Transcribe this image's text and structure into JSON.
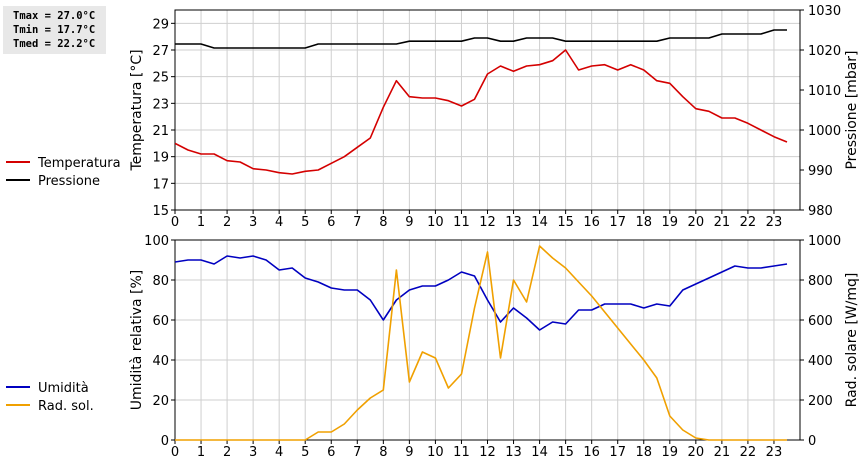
{
  "stats": {
    "tmax": "Tmax = 27.0°C",
    "tmin": "Tmin = 17.7°C",
    "tmed": "Tmed = 22.2°C"
  },
  "chart_data": [
    {
      "type": "line",
      "x": [
        0,
        0.5,
        1,
        1.5,
        2,
        2.5,
        3,
        3.5,
        4,
        4.5,
        5,
        5.5,
        6,
        6.5,
        7,
        7.5,
        8,
        8.5,
        9,
        9.5,
        10,
        10.5,
        11,
        11.5,
        12,
        12.5,
        13,
        13.5,
        14,
        14.5,
        15,
        15.5,
        16,
        16.5,
        17,
        17.5,
        18,
        18.5,
        19,
        19.5,
        20,
        20.5,
        21,
        21.5,
        22,
        22.5,
        23,
        23.5
      ],
      "xlim": [
        0,
        24
      ],
      "xticks": [
        "0",
        "1",
        "2",
        "3",
        "4",
        "5",
        "6",
        "7",
        "8",
        "9",
        "10",
        "11",
        "12",
        "13",
        "14",
        "15",
        "16",
        "17",
        "18",
        "19",
        "20",
        "21",
        "22",
        "23"
      ],
      "ylabel": "Temperatura [°C]",
      "ylim": [
        15,
        30
      ],
      "yticks": [
        "15",
        "17",
        "19",
        "21",
        "23",
        "25",
        "27",
        "29"
      ],
      "y2label": "Pressione [mbar]",
      "y2lim": [
        980,
        1030
      ],
      "y2ticks": [
        "980",
        "990",
        "1000",
        "1010",
        "1020",
        "1030"
      ],
      "grid": true,
      "legend": "left",
      "series": [
        {
          "name": "Temperatura",
          "color": "#d40000",
          "axis": "left",
          "values": [
            20.0,
            19.5,
            19.2,
            19.2,
            18.7,
            18.6,
            18.1,
            18.0,
            17.8,
            17.7,
            17.9,
            18.0,
            18.5,
            19.0,
            19.7,
            20.4,
            22.7,
            24.7,
            23.5,
            23.4,
            23.4,
            23.2,
            22.8,
            23.3,
            25.2,
            25.8,
            25.4,
            25.8,
            25.9,
            26.2,
            27.0,
            25.5,
            25.8,
            25.9,
            25.5,
            25.9,
            25.5,
            24.7,
            24.5,
            23.5,
            22.6,
            22.4,
            21.9,
            21.9,
            21.5,
            21.0,
            20.5,
            20.1
          ]
        },
        {
          "name": "Pressione",
          "color": "#000000",
          "axis": "right",
          "values": [
            1021.5,
            1021.5,
            1021.5,
            1020.5,
            1020.5,
            1020.5,
            1020.5,
            1020.5,
            1020.5,
            1020.5,
            1020.5,
            1021.5,
            1021.5,
            1021.5,
            1021.5,
            1021.5,
            1021.5,
            1021.5,
            1022.2,
            1022.2,
            1022.2,
            1022.2,
            1022.2,
            1023.0,
            1023.0,
            1022.2,
            1022.2,
            1023.0,
            1023.0,
            1023.0,
            1022.2,
            1022.2,
            1022.2,
            1022.2,
            1022.2,
            1022.2,
            1022.2,
            1022.2,
            1023.0,
            1023.0,
            1023.0,
            1023.0,
            1024.0,
            1024.0,
            1024.0,
            1024.0,
            1025.0,
            1025.0
          ]
        }
      ]
    },
    {
      "type": "line",
      "x": [
        0,
        0.5,
        1,
        1.5,
        2,
        2.5,
        3,
        3.5,
        4,
        4.5,
        5,
        5.5,
        6,
        6.5,
        7,
        7.5,
        8,
        8.5,
        9,
        9.5,
        10,
        10.5,
        11,
        11.5,
        12,
        12.5,
        13,
        13.5,
        14,
        14.5,
        15,
        15.5,
        16,
        16.5,
        17,
        17.5,
        18,
        18.5,
        19,
        19.5,
        20,
        20.5,
        21,
        21.5,
        22,
        22.5,
        23,
        23.5
      ],
      "xlim": [
        0,
        24
      ],
      "xticks": [
        "0",
        "1",
        "2",
        "3",
        "4",
        "5",
        "6",
        "7",
        "8",
        "9",
        "10",
        "11",
        "12",
        "13",
        "14",
        "15",
        "16",
        "17",
        "18",
        "19",
        "20",
        "21",
        "22",
        "23"
      ],
      "ylabel": "Umidità relativa [%]",
      "ylim": [
        0,
        100
      ],
      "yticks": [
        "0",
        "20",
        "40",
        "60",
        "80",
        "100"
      ],
      "y2label": "Rad. solare [W/mq]",
      "y2lim": [
        0,
        1000
      ],
      "y2ticks": [
        "0",
        "200",
        "400",
        "600",
        "800",
        "1000"
      ],
      "grid": true,
      "legend": "left",
      "series": [
        {
          "name": "Umidità",
          "color": "#0000c0",
          "axis": "left",
          "values": [
            89,
            90,
            90,
            88,
            92,
            91,
            92,
            90,
            85,
            86,
            81,
            79,
            76,
            75,
            75,
            70,
            60,
            70,
            75,
            77,
            77,
            80,
            84,
            82,
            70,
            59,
            66,
            61,
            55,
            59,
            58,
            65,
            65,
            68,
            68,
            68,
            66,
            68,
            67,
            75,
            78,
            81,
            84,
            87,
            86,
            86,
            87,
            88
          ]
        },
        {
          "name": "Rad. sol.",
          "color": "#f0a000",
          "axis": "right",
          "values": [
            0,
            0,
            0,
            0,
            0,
            0,
            0,
            0,
            0,
            0,
            0,
            40,
            40,
            80,
            150,
            210,
            250,
            850,
            290,
            440,
            410,
            260,
            330,
            660,
            940,
            410,
            800,
            690,
            970,
            910,
            860,
            790,
            720,
            640,
            560,
            480,
            400,
            310,
            120,
            50,
            10,
            0,
            0,
            0,
            0,
            0,
            0,
            0
          ]
        }
      ]
    }
  ]
}
